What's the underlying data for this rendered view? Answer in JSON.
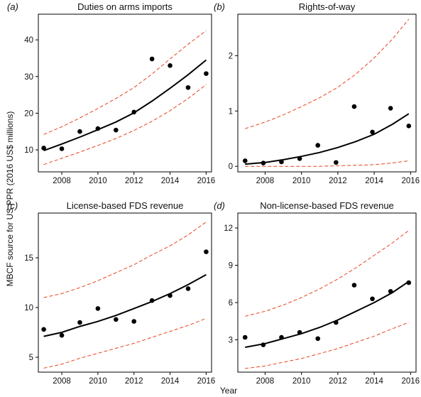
{
  "ylabel": "MBCF source for US PPR (2016 US$ millions)",
  "xlabel": "Year",
  "chart_data": [
    {
      "type": "scatter",
      "panel_letter": "a",
      "title": "Duties on arms imports",
      "xlim": [
        2006.7,
        2016.3
      ],
      "ylim": [
        4,
        47
      ],
      "xticks": [
        "2008",
        "2010",
        "2012",
        "2014",
        "2016"
      ],
      "xtick_values": [
        2008,
        2010,
        2012,
        2014,
        2016
      ],
      "yticks": [
        "10",
        "20",
        "30",
        "40"
      ],
      "ytick_values": [
        10,
        20,
        30,
        40
      ],
      "points": {
        "x": [
          2007,
          2008,
          2009,
          2010,
          2011,
          2012,
          2013,
          2014,
          2015,
          2016
        ],
        "y": [
          10.5,
          10.3,
          15.0,
          15.8,
          15.4,
          20.3,
          34.8,
          33.0,
          27.0,
          30.8
        ]
      },
      "fit": {
        "x": [
          2007,
          2008,
          2009,
          2010,
          2011,
          2012,
          2013,
          2014,
          2015,
          2016
        ],
        "y": [
          9.8,
          11.6,
          13.5,
          15.5,
          17.6,
          20.1,
          23.3,
          26.8,
          30.5,
          34.5
        ]
      },
      "upper": {
        "x": [
          2007,
          2008,
          2009,
          2010,
          2011,
          2012,
          2013,
          2014,
          2015,
          2016
        ],
        "y": [
          14.2,
          16.3,
          18.7,
          21.3,
          24.0,
          27.0,
          30.7,
          34.8,
          38.8,
          42.5
        ]
      },
      "lower": {
        "x": [
          2007,
          2008,
          2009,
          2010,
          2011,
          2012,
          2013,
          2014,
          2015,
          2016
        ],
        "y": [
          6.0,
          7.7,
          9.4,
          11.2,
          13.1,
          15.3,
          17.8,
          20.7,
          24.0,
          27.8
        ]
      }
    },
    {
      "type": "scatter",
      "panel_letter": "b",
      "title": "Rights-of-way",
      "xlim": [
        2006.5,
        2016.3
      ],
      "ylim": [
        -0.1,
        2.75
      ],
      "xticks": [
        "2008",
        "2010",
        "2012",
        "2014",
        "2016"
      ],
      "xtick_values": [
        2008,
        2010,
        2012,
        2014,
        2016
      ],
      "yticks": [
        "0",
        "1",
        "2"
      ],
      "ytick_values": [
        0,
        1,
        2
      ],
      "points": {
        "x": [
          2006.9,
          2007.9,
          2008.9,
          2009.9,
          2010.9,
          2011.9,
          2012.9,
          2013.9,
          2014.9,
          2015.9
        ],
        "y": [
          0.1,
          0.06,
          0.08,
          0.14,
          0.38,
          0.07,
          1.08,
          0.62,
          1.05,
          0.73
        ]
      },
      "fit": {
        "x": [
          2006.9,
          2008,
          2009,
          2010,
          2011,
          2012,
          2013,
          2014,
          2015,
          2015.9
        ],
        "y": [
          0.04,
          0.07,
          0.12,
          0.18,
          0.25,
          0.34,
          0.45,
          0.58,
          0.76,
          0.95
        ]
      },
      "upper": {
        "x": [
          2006.9,
          2008,
          2009,
          2010,
          2011,
          2012,
          2013,
          2014,
          2015,
          2015.9
        ],
        "y": [
          0.68,
          0.8,
          0.93,
          1.08,
          1.24,
          1.43,
          1.67,
          1.96,
          2.3,
          2.66
        ]
      },
      "lower": {
        "x": [
          2006.9,
          2008,
          2009,
          2010,
          2011,
          2012,
          2013,
          2014,
          2015,
          2015.9
        ],
        "y": [
          0.0,
          0.0,
          0.0,
          0.0,
          0.0,
          0.01,
          0.02,
          0.03,
          0.06,
          0.1
        ]
      }
    },
    {
      "type": "scatter",
      "panel_letter": "c",
      "title": "License-based FDS revenue",
      "xlim": [
        2006.7,
        2016.3
      ],
      "ylim": [
        3.5,
        19.5
      ],
      "xticks": [
        "2008",
        "2010",
        "2012",
        "2014",
        "2016"
      ],
      "xtick_values": [
        2008,
        2010,
        2012,
        2014,
        2016
      ],
      "yticks": [
        "5",
        "10",
        "15"
      ],
      "ytick_values": [
        5,
        10,
        15
      ],
      "points": {
        "x": [
          2007,
          2008,
          2009,
          2010,
          2011,
          2012,
          2013,
          2014,
          2015,
          2016
        ],
        "y": [
          7.8,
          7.2,
          8.5,
          9.9,
          8.8,
          8.6,
          10.7,
          11.2,
          11.9,
          15.6
        ]
      },
      "fit": {
        "x": [
          2007,
          2008,
          2009,
          2010,
          2011,
          2012,
          2013,
          2014,
          2015,
          2016
        ],
        "y": [
          7.1,
          7.5,
          8.1,
          8.6,
          9.2,
          9.9,
          10.6,
          11.4,
          12.3,
          13.3
        ]
      },
      "upper": {
        "x": [
          2007,
          2008,
          2009,
          2010,
          2011,
          2012,
          2013,
          2014,
          2015,
          2016
        ],
        "y": [
          11.0,
          11.4,
          12.0,
          12.7,
          13.5,
          14.3,
          15.3,
          16.2,
          17.3,
          18.6
        ]
      },
      "lower": {
        "x": [
          2007,
          2008,
          2009,
          2010,
          2011,
          2012,
          2013,
          2014,
          2015,
          2016
        ],
        "y": [
          3.9,
          4.3,
          4.9,
          5.4,
          5.9,
          6.4,
          7.0,
          7.6,
          8.2,
          8.9
        ]
      }
    },
    {
      "type": "scatter",
      "panel_letter": "d",
      "title": "Non-license-based FDS revenue",
      "xlim": [
        2006.5,
        2016.3
      ],
      "ylim": [
        0.4,
        13.2
      ],
      "xticks": [
        "2008",
        "2010",
        "2012",
        "2014",
        "2016"
      ],
      "xtick_values": [
        2008,
        2010,
        2012,
        2014,
        2016
      ],
      "yticks": [
        "3",
        "6",
        "9",
        "12"
      ],
      "ytick_values": [
        3,
        6,
        9,
        12
      ],
      "points": {
        "x": [
          2006.9,
          2007.9,
          2008.9,
          2009.9,
          2010.9,
          2011.9,
          2012.9,
          2013.9,
          2014.9,
          2015.9
        ],
        "y": [
          3.2,
          2.6,
          3.2,
          3.6,
          3.1,
          4.4,
          7.4,
          6.3,
          6.9,
          7.6
        ]
      },
      "fit": {
        "x": [
          2006.9,
          2008,
          2009,
          2010,
          2011,
          2012,
          2013,
          2014,
          2015,
          2015.9
        ],
        "y": [
          2.4,
          2.7,
          3.1,
          3.5,
          4.0,
          4.6,
          5.3,
          6.0,
          6.8,
          7.7
        ]
      },
      "upper": {
        "x": [
          2006.9,
          2008,
          2009,
          2010,
          2011,
          2012,
          2013,
          2014,
          2015,
          2015.9
        ],
        "y": [
          4.9,
          5.3,
          5.8,
          6.4,
          7.1,
          7.9,
          8.8,
          9.8,
          10.8,
          11.8
        ]
      },
      "lower": {
        "x": [
          2006.9,
          2008,
          2009,
          2010,
          2011,
          2012,
          2013,
          2014,
          2015,
          2015.9
        ],
        "y": [
          0.7,
          0.9,
          1.2,
          1.5,
          1.9,
          2.3,
          2.8,
          3.3,
          3.9,
          4.4
        ]
      }
    }
  ],
  "colors": {
    "points": "#000000",
    "fit_line": "#000000",
    "band_line": "#e8431c",
    "axis": "#000000"
  }
}
